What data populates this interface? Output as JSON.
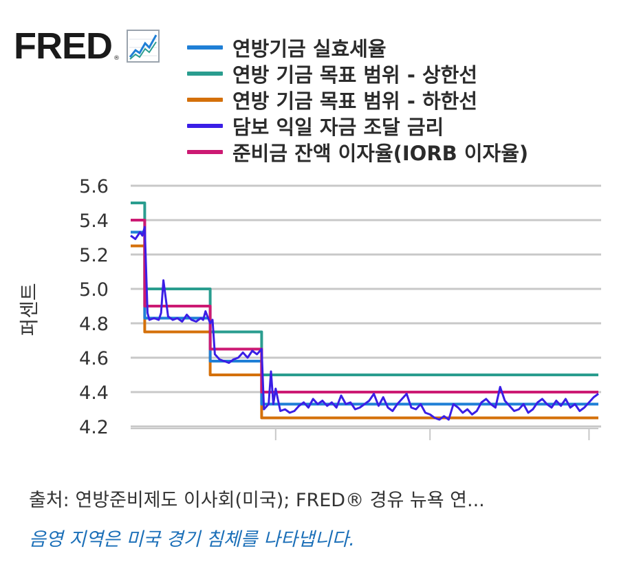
{
  "logo": {
    "text": "FRED",
    "reg_mark": "®",
    "icon": "line-chart-icon"
  },
  "footer": {
    "source": "출처: 연방준비제도 이사회(미국); FRED® 경유 뉴욕 연...",
    "recession_note": "음영 지역은 미국 경기 침체를 나타냅니다."
  },
  "chart_data": {
    "type": "line",
    "ylabel": "퍼센트",
    "ylim": [
      4.2,
      5.6
    ],
    "yticks": [
      "5.6",
      "5.4",
      "5.2",
      "5.0",
      "4.8",
      "4.6",
      "4.4",
      "4.2"
    ],
    "xlim": [
      0,
      100
    ],
    "grid": true,
    "legend_position": "top",
    "series": [
      {
        "name": "연방기금 실효세율",
        "color": "#1f7fd6",
        "x": [
          0,
          3,
          3,
          17,
          17,
          28,
          28,
          100
        ],
        "y": [
          5.33,
          5.33,
          4.83,
          4.83,
          4.58,
          4.58,
          4.33,
          4.33
        ]
      },
      {
        "name": "연방 기금 목표 범위 - 상한선",
        "color": "#2a9d8f",
        "x": [
          0,
          3,
          3,
          17,
          17,
          28,
          28,
          100
        ],
        "y": [
          5.5,
          5.5,
          5.0,
          5.0,
          4.75,
          4.75,
          4.5,
          4.5
        ]
      },
      {
        "name": "연방 기금 목표 범위 - 하한선",
        "color": "#d4700a",
        "x": [
          0,
          3,
          3,
          17,
          17,
          28,
          28,
          100
        ],
        "y": [
          5.25,
          5.25,
          4.75,
          4.75,
          4.5,
          4.5,
          4.25,
          4.25
        ]
      },
      {
        "name": "담보 익일 자금 조달 금리",
        "color": "#3a1ee6",
        "x": [
          0,
          1,
          2,
          2.5,
          3,
          3.6,
          4,
          5,
          6,
          6.5,
          7,
          8,
          9,
          10,
          11,
          12,
          13,
          14,
          15,
          15.5,
          16,
          17,
          17.5,
          18,
          19,
          20,
          21,
          22,
          23,
          24,
          25,
          26,
          27,
          28,
          28.5,
          29.5,
          30,
          30.5,
          31,
          32,
          33,
          34,
          35,
          36,
          37,
          38,
          39,
          40,
          41,
          42,
          43,
          44,
          45,
          46,
          47,
          48,
          49,
          50,
          51,
          52,
          53,
          54,
          55,
          56,
          57,
          58,
          59,
          60,
          61,
          62,
          63,
          64,
          65,
          66,
          67,
          68,
          69,
          70,
          71,
          72,
          73,
          74,
          75,
          76,
          77,
          78,
          79,
          80,
          81,
          82,
          83,
          84,
          85,
          86,
          87,
          88,
          89,
          90,
          91,
          92,
          93,
          94,
          95,
          96,
          97,
          98,
          99,
          100
        ],
        "y": [
          5.31,
          5.29,
          5.33,
          5.31,
          5.36,
          4.86,
          4.82,
          4.83,
          4.82,
          4.86,
          5.05,
          4.84,
          4.82,
          4.83,
          4.81,
          4.85,
          4.82,
          4.81,
          4.83,
          4.82,
          4.87,
          4.8,
          4.82,
          4.62,
          4.59,
          4.58,
          4.57,
          4.59,
          4.6,
          4.63,
          4.6,
          4.64,
          4.62,
          4.65,
          4.3,
          4.33,
          4.52,
          4.33,
          4.42,
          4.29,
          4.3,
          4.28,
          4.29,
          4.32,
          4.34,
          4.31,
          4.36,
          4.33,
          4.35,
          4.32,
          4.34,
          4.31,
          4.38,
          4.33,
          4.34,
          4.3,
          4.31,
          4.33,
          4.35,
          4.39,
          4.32,
          4.37,
          4.31,
          4.29,
          4.33,
          4.36,
          4.39,
          4.31,
          4.3,
          4.33,
          4.28,
          4.27,
          4.25,
          4.24,
          4.26,
          4.24,
          4.33,
          4.31,
          4.28,
          4.3,
          4.27,
          4.29,
          4.34,
          4.36,
          4.33,
          4.31,
          4.43,
          4.35,
          4.32,
          4.29,
          4.3,
          4.33,
          4.28,
          4.3,
          4.34,
          4.36,
          4.33,
          4.31,
          4.35,
          4.32,
          4.36,
          4.31,
          4.33,
          4.29,
          4.31,
          4.34,
          4.37,
          4.39
        ]
      },
      {
        "name": "준비금 잔액 이자율(IORB 이자율)",
        "color": "#cc1a73",
        "x": [
          0,
          3,
          3,
          17,
          17,
          28,
          28,
          100
        ],
        "y": [
          5.4,
          5.4,
          4.9,
          4.9,
          4.65,
          4.65,
          4.4,
          4.4
        ]
      }
    ]
  }
}
